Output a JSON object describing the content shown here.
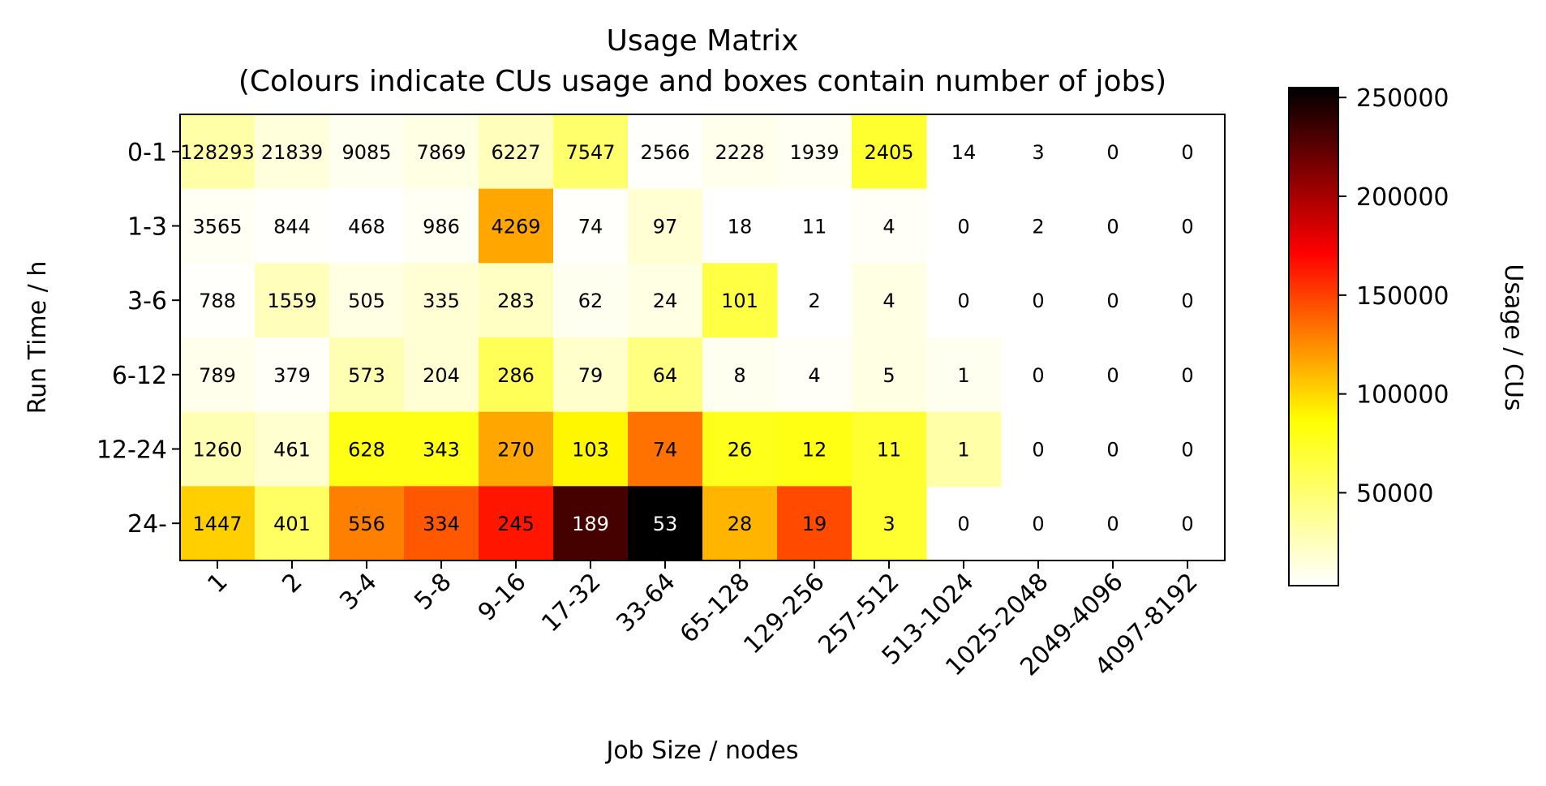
{
  "chart_data": {
    "type": "heatmap",
    "title_line1": "Usage Matrix",
    "title_line2": "(Colours indicate CUs usage and boxes contain number of jobs)",
    "xlabel": "Job Size / nodes",
    "ylabel": "Run Time / h",
    "colorbar_label": "Usage / CUs",
    "colormap": "hot_r",
    "x_categories": [
      "1",
      "2",
      "3-4",
      "5-8",
      "9-16",
      "17-32",
      "33-64",
      "65-128",
      "129-256",
      "257-512",
      "513-1024",
      "1025-2048",
      "2049-4096",
      "4097-8192"
    ],
    "y_categories": [
      "0-1",
      "1-3",
      "3-6",
      "6-12",
      "12-24",
      "24-"
    ],
    "job_counts": [
      [
        128293,
        21839,
        9085,
        7869,
        6227,
        7547,
        2566,
        2228,
        1939,
        2405,
        14,
        3,
        0,
        0
      ],
      [
        3565,
        844,
        468,
        986,
        4269,
        74,
        97,
        18,
        11,
        4,
        0,
        2,
        0,
        0
      ],
      [
        788,
        1559,
        505,
        335,
        283,
        62,
        24,
        101,
        2,
        4,
        0,
        0,
        0,
        0
      ],
      [
        789,
        379,
        573,
        204,
        286,
        79,
        64,
        8,
        4,
        5,
        1,
        0,
        0,
        0
      ],
      [
        1260,
        461,
        628,
        343,
        270,
        103,
        74,
        26,
        12,
        11,
        1,
        0,
        0,
        0
      ],
      [
        1447,
        401,
        556,
        334,
        245,
        189,
        53,
        28,
        19,
        3,
        0,
        0,
        0,
        0
      ]
    ],
    "usage_cus": [
      [
        25000,
        12000,
        7000,
        10000,
        20000,
        40000,
        4000,
        8000,
        6000,
        55000,
        0,
        0,
        0,
        0
      ],
      [
        6000,
        4000,
        2000,
        6000,
        100000,
        4000,
        14000,
        2000,
        3000,
        5000,
        0,
        3000,
        0,
        0
      ],
      [
        4000,
        20000,
        10000,
        14000,
        18000,
        7000,
        10000,
        50000,
        0,
        10000,
        0,
        0,
        0,
        0
      ],
      [
        8000,
        5000,
        22000,
        14000,
        45000,
        16000,
        35000,
        7000,
        5000,
        10000,
        7000,
        0,
        0,
        0
      ],
      [
        22000,
        15000,
        62000,
        62000,
        100000,
        70000,
        120000,
        60000,
        62000,
        55000,
        25000,
        0,
        0,
        0
      ],
      [
        85000,
        42000,
        115000,
        130000,
        155000,
        230000,
        255000,
        95000,
        135000,
        55000,
        0,
        0,
        0,
        0
      ]
    ],
    "colorbar_min": 3000,
    "colorbar_max": 255000,
    "colorbar_ticks": [
      "50000",
      "100000",
      "150000",
      "200000",
      "250000"
    ],
    "colorbar_tick_values": [
      50000,
      100000,
      150000,
      200000,
      250000
    ]
  }
}
